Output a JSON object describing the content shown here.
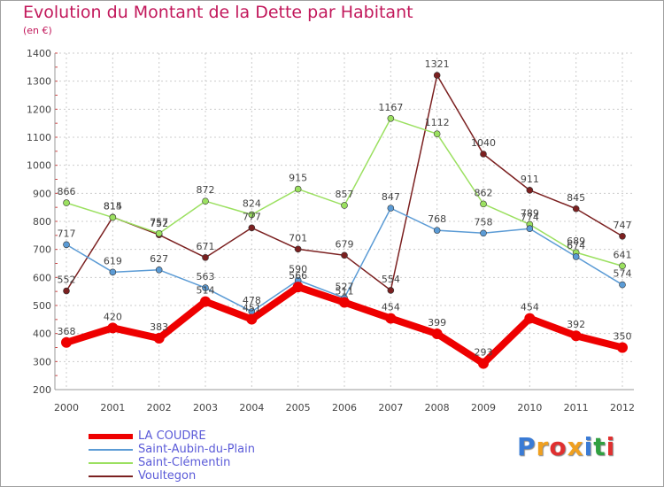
{
  "title": "Evolution du Montant de la Dette par Habitant",
  "subtitle": "(en €)",
  "logo": {
    "text": "Proxiti",
    "colors": [
      "#3a7bd5",
      "#f0a020",
      "#e03030",
      "#f0a020",
      "#3a7bd5",
      "#30a040",
      "#e03030"
    ]
  },
  "chart_data": {
    "type": "line",
    "x": [
      "2000",
      "2001",
      "2002",
      "2003",
      "2004",
      "2005",
      "2006",
      "2007",
      "2008",
      "2009",
      "2010",
      "2011",
      "2012"
    ],
    "ylim": [
      200,
      1400
    ],
    "yticks": [
      200,
      300,
      400,
      500,
      600,
      700,
      800,
      900,
      1000,
      1100,
      1200,
      1300,
      1400
    ],
    "grid": true,
    "legend_position": "bottom-left",
    "series": [
      {
        "name": "LA COUDRE",
        "color": "#ee0000",
        "width": 8,
        "values": [
          368,
          420,
          383,
          514,
          451,
          566,
          511,
          454,
          399,
          293,
          454,
          392,
          350
        ]
      },
      {
        "name": "Saint-Aubin-du-Plain",
        "color": "#5b9bd5",
        "width": 1.5,
        "values": [
          717,
          619,
          627,
          563,
          478,
          590,
          527,
          847,
          768,
          758,
          774,
          674,
          574
        ]
      },
      {
        "name": "Saint-Clémentin",
        "color": "#9be060",
        "width": 1.5,
        "values": [
          866,
          814,
          757,
          872,
          824,
          915,
          857,
          1167,
          1112,
          862,
          789,
          689,
          641
        ]
      },
      {
        "name": "Voultegon",
        "color": "#7b2020",
        "width": 1.5,
        "values": [
          552,
          815,
          752,
          671,
          777,
          701,
          679,
          554,
          1321,
          1040,
          911,
          845,
          747
        ]
      }
    ]
  }
}
